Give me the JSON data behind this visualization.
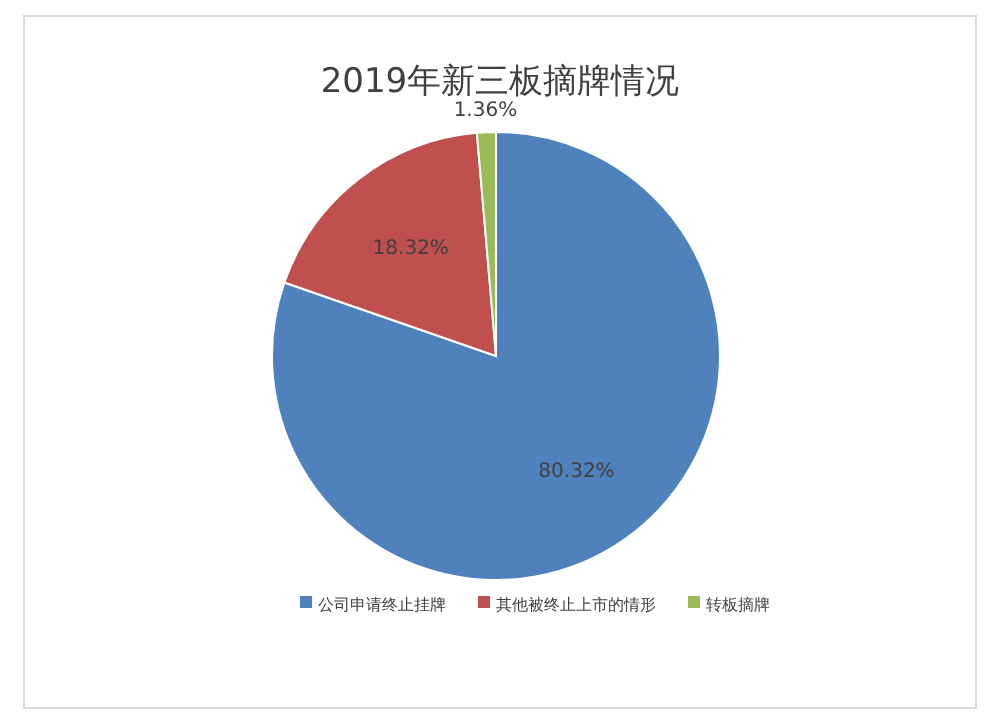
{
  "chart_data": {
    "type": "pie",
    "title": "2019年新三板摘牌情况",
    "categories": [
      "公司申请终止挂牌",
      "其他被终止上市的情形",
      "转板摘牌"
    ],
    "values": [
      80.32,
      18.32,
      1.36
    ],
    "colors": [
      "#4f81bd",
      "#c0504d",
      "#9bbb59"
    ],
    "value_labels": [
      "80.32%",
      "18.32%",
      "1.36%"
    ],
    "legend": "bottom"
  }
}
